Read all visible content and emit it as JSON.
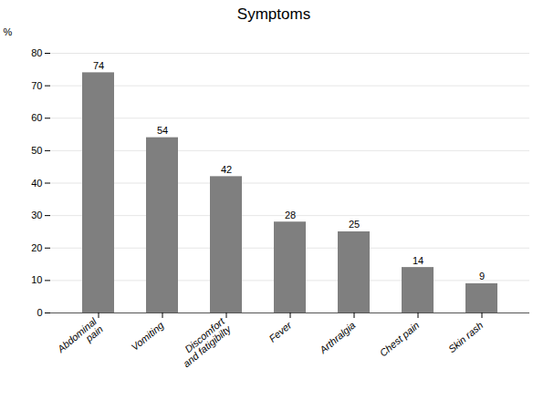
{
  "chart_data": {
    "type": "bar",
    "title": "Symptoms",
    "categories": [
      "Abdominal\npain",
      "Vomiting",
      "Discomfort\nand fatigibilty",
      "Fever",
      "Arthralgia",
      "Chest pain",
      "Skin rash"
    ],
    "values": [
      74,
      54,
      42,
      28,
      25,
      14,
      9
    ],
    "color": "#7f7f7f",
    "ylabel": "%",
    "ylim": [
      0,
      80
    ],
    "yticks": [
      0,
      10,
      20,
      30,
      40,
      50,
      60,
      70,
      80
    ],
    "grid": true,
    "data_labels": true
  }
}
